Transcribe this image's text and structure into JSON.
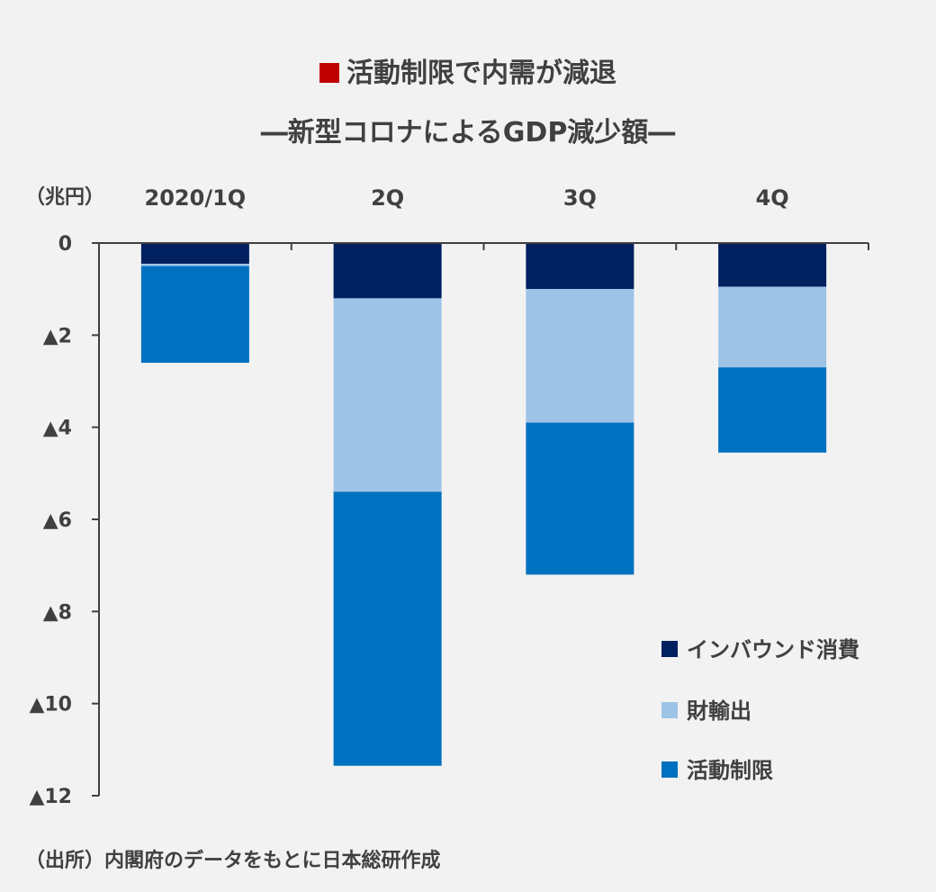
{
  "title": "活動制限で内需が減退",
  "subtitle": "―新型コロナによるGDP減少額―",
  "source": "（出所）内閣府のデータをもとに日本総研作成",
  "colors": {
    "title_marker": "#c00000",
    "inbound": "#002060",
    "exports": "#9dc3e6",
    "restriction": "#0070c0"
  },
  "chart_data": {
    "type": "bar",
    "stacked": true,
    "unit_label": "（兆円）",
    "categories": [
      "2020/1Q",
      "2Q",
      "3Q",
      "4Q"
    ],
    "y_ticks": [
      {
        "value": 0,
        "label": "0"
      },
      {
        "value": -2,
        "label": "▲2"
      },
      {
        "value": -4,
        "label": "▲4"
      },
      {
        "value": -6,
        "label": "▲6"
      },
      {
        "value": -8,
        "label": "▲8"
      },
      {
        "value": -10,
        "label": "▲10"
      },
      {
        "value": -12,
        "label": "▲12"
      }
    ],
    "ylim": [
      -12,
      0
    ],
    "category_labels_position": "top",
    "grid": false,
    "legend_position": "bottom-right",
    "series": [
      {
        "name": "インバウンド消費",
        "color": "#002060",
        "values": [
          -0.45,
          -1.2,
          -1.0,
          -0.95
        ]
      },
      {
        "name": "財輸出",
        "color": "#9dc3e6",
        "values": [
          -0.05,
          -4.2,
          -2.9,
          -1.75
        ]
      },
      {
        "name": "活動制限",
        "color": "#0070c0",
        "values": [
          -2.1,
          -5.95,
          -3.3,
          -1.85
        ]
      }
    ]
  }
}
